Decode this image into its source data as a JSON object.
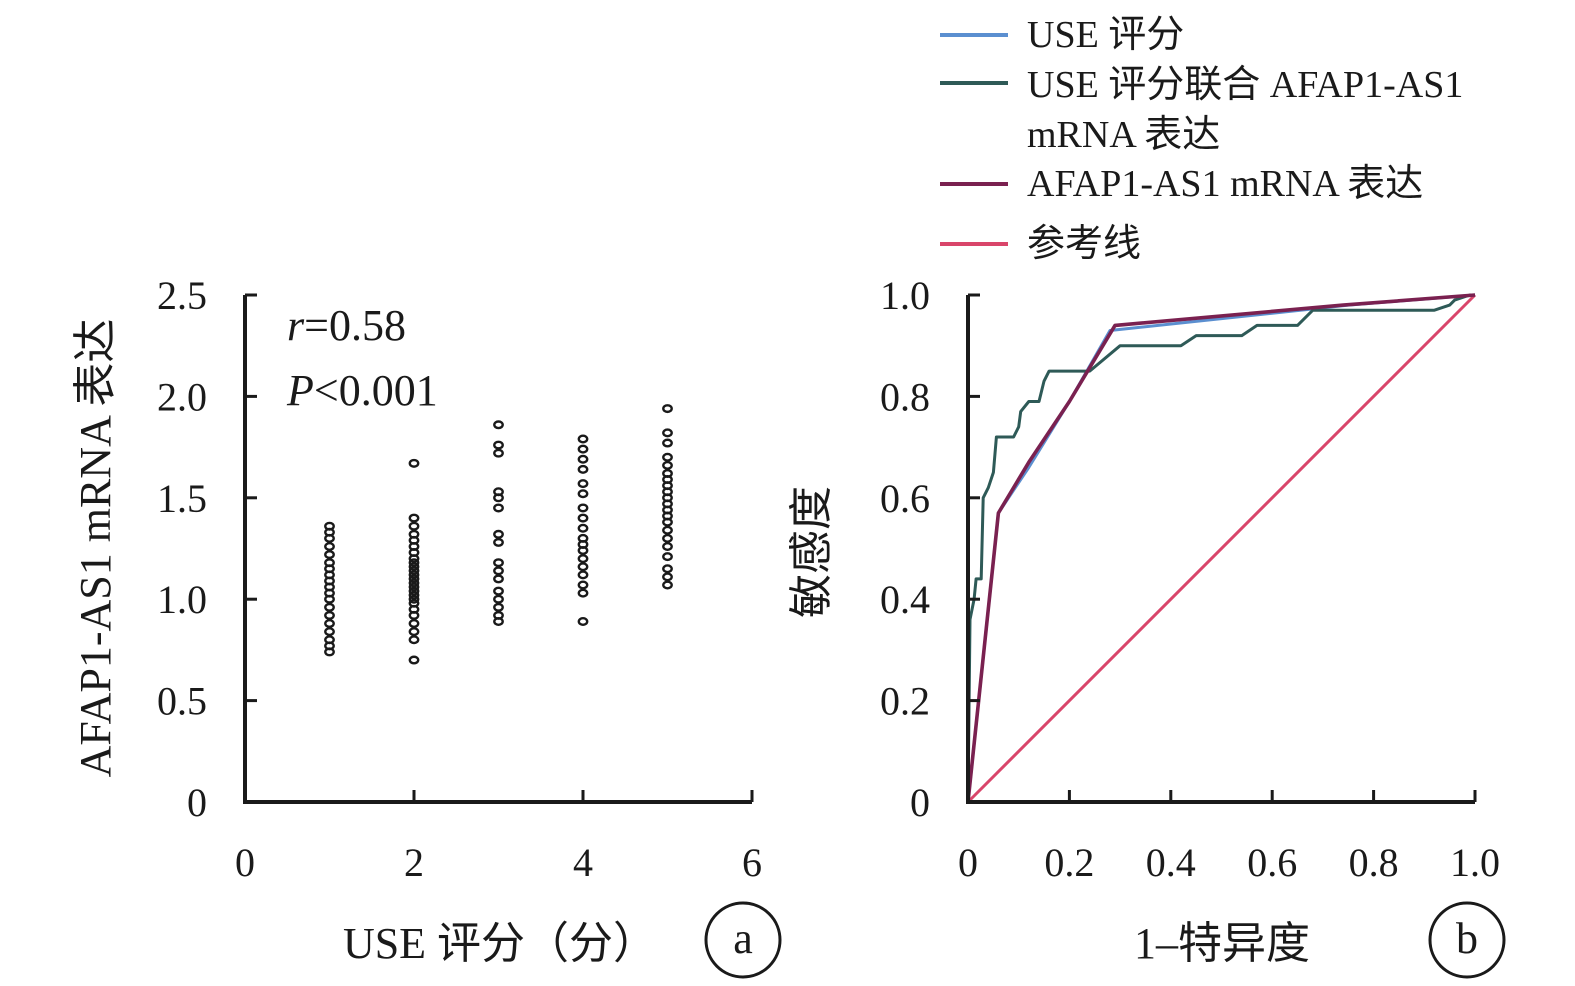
{
  "chart_data": [
    {
      "type": "scatter",
      "panel": "a",
      "xlabel": "USE 评分（分）",
      "ylabel": "AFAP1-AS1 mRNA 表达",
      "xlim": [
        0,
        6
      ],
      "ylim": [
        0,
        2.5
      ],
      "xticks": [
        "0",
        "2",
        "4",
        "6"
      ],
      "yticks": [
        "0",
        "0.5",
        "1.0",
        "1.5",
        "2.0",
        "2.5"
      ],
      "annotations": [
        {
          "italic": "r",
          "rest": "=0.58"
        },
        {
          "italic": "P",
          "rest": "<0.001"
        }
      ],
      "series": [
        {
          "x": 1,
          "values": [
            0.74,
            0.77,
            0.8,
            0.84,
            0.88,
            0.92,
            0.96,
            1.0,
            1.03,
            1.06,
            1.09,
            1.12,
            1.15,
            1.18,
            1.22,
            1.26,
            1.3,
            1.33,
            1.36
          ]
        },
        {
          "x": 2,
          "values": [
            0.7,
            0.8,
            0.84,
            0.88,
            0.92,
            0.95,
            0.98,
            1.0,
            1.02,
            1.04,
            1.06,
            1.08,
            1.1,
            1.12,
            1.14,
            1.16,
            1.18,
            1.2,
            1.23,
            1.26,
            1.29,
            1.32,
            1.36,
            1.4,
            1.67
          ]
        },
        {
          "x": 3,
          "values": [
            0.89,
            0.92,
            0.96,
            1.0,
            1.04,
            1.1,
            1.14,
            1.18,
            1.28,
            1.32,
            1.45,
            1.5,
            1.53,
            1.72,
            1.76,
            1.86
          ]
        },
        {
          "x": 4,
          "values": [
            0.89,
            1.03,
            1.07,
            1.12,
            1.16,
            1.2,
            1.24,
            1.27,
            1.3,
            1.35,
            1.4,
            1.45,
            1.52,
            1.57,
            1.64,
            1.69,
            1.74,
            1.79
          ]
        },
        {
          "x": 5,
          "values": [
            1.07,
            1.11,
            1.15,
            1.21,
            1.26,
            1.3,
            1.34,
            1.38,
            1.41,
            1.44,
            1.47,
            1.5,
            1.53,
            1.56,
            1.59,
            1.62,
            1.66,
            1.7,
            1.77,
            1.82,
            1.94
          ]
        }
      ]
    },
    {
      "type": "line",
      "panel": "b",
      "xlabel": "1–特异度",
      "ylabel": "敏感度",
      "xlim": [
        0,
        1.0
      ],
      "ylim": [
        0,
        1.0
      ],
      "xticks": [
        "0",
        "0.2",
        "0.4",
        "0.6",
        "0.8",
        "1.0"
      ],
      "yticks": [
        "0",
        "0.2",
        "0.4",
        "0.6",
        "0.8",
        "1.0"
      ],
      "legend_position": "top",
      "series": [
        {
          "name": "USE 评分",
          "color": "#5b8fd0",
          "points": [
            [
              0,
              0
            ],
            [
              0.06,
              0.57
            ],
            [
              0.12,
              0.66
            ],
            [
              0.2,
              0.79
            ],
            [
              0.28,
              0.93
            ],
            [
              0.75,
              0.98
            ],
            [
              1.0,
              1.0
            ]
          ]
        },
        {
          "name": "USE 评分联合 AFAP1-AS1 mRNA 表达",
          "color": "#2e5a57",
          "points": [
            [
              0,
              0
            ],
            [
              0.004,
              0.36
            ],
            [
              0.012,
              0.4
            ],
            [
              0.016,
              0.44
            ],
            [
              0.026,
              0.44
            ],
            [
              0.03,
              0.6
            ],
            [
              0.04,
              0.62
            ],
            [
              0.05,
              0.65
            ],
            [
              0.056,
              0.72
            ],
            [
              0.09,
              0.72
            ],
            [
              0.1,
              0.74
            ],
            [
              0.104,
              0.77
            ],
            [
              0.12,
              0.79
            ],
            [
              0.14,
              0.79
            ],
            [
              0.15,
              0.83
            ],
            [
              0.16,
              0.85
            ],
            [
              0.24,
              0.85
            ],
            [
              0.3,
              0.9
            ],
            [
              0.42,
              0.9
            ],
            [
              0.45,
              0.92
            ],
            [
              0.54,
              0.92
            ],
            [
              0.57,
              0.94
            ],
            [
              0.65,
              0.94
            ],
            [
              0.68,
              0.97
            ],
            [
              0.92,
              0.97
            ],
            [
              0.95,
              0.98
            ],
            [
              0.96,
              0.99
            ],
            [
              0.99,
              1.0
            ],
            [
              1.0,
              1.0
            ]
          ]
        },
        {
          "name": "AFAP1-AS1 mRNA 表达",
          "color": "#7a2150",
          "points": [
            [
              0,
              0
            ],
            [
              0.06,
              0.57
            ],
            [
              0.12,
              0.67
            ],
            [
              0.2,
              0.79
            ],
            [
              0.29,
              0.94
            ],
            [
              0.74,
              0.98
            ],
            [
              1.0,
              1.0
            ]
          ]
        },
        {
          "name": "参考线",
          "color": "#d9456a",
          "points": [
            [
              0,
              0
            ],
            [
              1.0,
              1.0
            ]
          ]
        }
      ]
    }
  ]
}
